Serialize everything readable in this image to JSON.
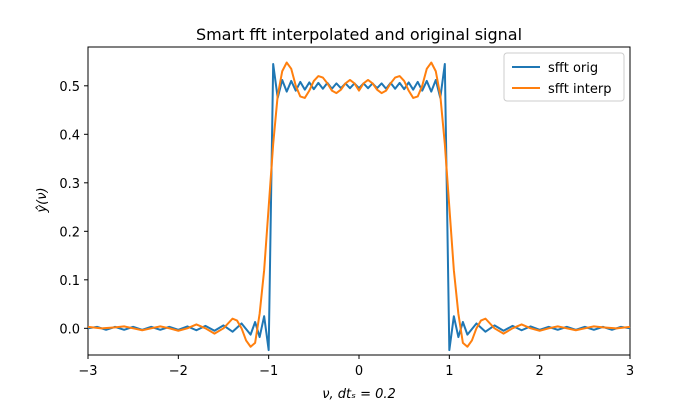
{
  "chart_data": {
    "type": "line",
    "title": "Smart fft interpolated and original signal",
    "xlabel": "ν, dtₛ = 0.2",
    "ylabel": "ŷ(ν)",
    "xlim": [
      -3,
      3
    ],
    "ylim": [
      -0.055,
      0.58
    ],
    "x_ticks": [
      -3,
      -2,
      -1,
      0,
      1,
      2,
      3
    ],
    "x_tick_labels": [
      "−3",
      "−2",
      "−1",
      "0",
      "1",
      "2",
      "3"
    ],
    "y_ticks": [
      0.0,
      0.1,
      0.2,
      0.3,
      0.4,
      0.5
    ],
    "y_tick_labels": [
      "0.0",
      "0.1",
      "0.2",
      "0.3",
      "0.4",
      "0.5"
    ],
    "grid": false,
    "legend_position": "top-right",
    "series": [
      {
        "name": "sfft orig",
        "color": "#1f77b4",
        "points": [
          [
            -3.0,
            0.0
          ],
          [
            -2.9,
            0.003
          ],
          [
            -2.8,
            -0.003
          ],
          [
            -2.7,
            0.003
          ],
          [
            -2.6,
            -0.003
          ],
          [
            -2.5,
            0.003
          ],
          [
            -2.4,
            -0.003
          ],
          [
            -2.3,
            0.003
          ],
          [
            -2.2,
            -0.003
          ],
          [
            -2.1,
            0.003
          ],
          [
            -2.0,
            -0.003
          ],
          [
            -1.9,
            0.004
          ],
          [
            -1.8,
            -0.004
          ],
          [
            -1.7,
            0.005
          ],
          [
            -1.6,
            -0.005
          ],
          [
            -1.5,
            0.006
          ],
          [
            -1.4,
            -0.007
          ],
          [
            -1.3,
            0.01
          ],
          [
            -1.2,
            -0.013
          ],
          [
            -1.15,
            0.013
          ],
          [
            -1.1,
            -0.018
          ],
          [
            -1.05,
            0.025
          ],
          [
            -1.0,
            -0.045
          ],
          [
            -0.95,
            0.545
          ],
          [
            -0.9,
            0.475
          ],
          [
            -0.85,
            0.512
          ],
          [
            -0.8,
            0.488
          ],
          [
            -0.75,
            0.51
          ],
          [
            -0.7,
            0.49
          ],
          [
            -0.65,
            0.508
          ],
          [
            -0.6,
            0.492
          ],
          [
            -0.55,
            0.507
          ],
          [
            -0.5,
            0.493
          ],
          [
            -0.45,
            0.506
          ],
          [
            -0.4,
            0.494
          ],
          [
            -0.35,
            0.506
          ],
          [
            -0.3,
            0.494
          ],
          [
            -0.25,
            0.505
          ],
          [
            -0.2,
            0.495
          ],
          [
            -0.15,
            0.505
          ],
          [
            -0.1,
            0.495
          ],
          [
            -0.05,
            0.505
          ],
          [
            0.0,
            0.495
          ],
          [
            0.05,
            0.505
          ],
          [
            0.1,
            0.495
          ],
          [
            0.15,
            0.505
          ],
          [
            0.2,
            0.495
          ],
          [
            0.25,
            0.505
          ],
          [
            0.3,
            0.494
          ],
          [
            0.35,
            0.506
          ],
          [
            0.4,
            0.494
          ],
          [
            0.45,
            0.506
          ],
          [
            0.5,
            0.493
          ],
          [
            0.55,
            0.507
          ],
          [
            0.6,
            0.492
          ],
          [
            0.65,
            0.508
          ],
          [
            0.7,
            0.49
          ],
          [
            0.75,
            0.51
          ],
          [
            0.8,
            0.488
          ],
          [
            0.85,
            0.512
          ],
          [
            0.9,
            0.475
          ],
          [
            0.95,
            0.545
          ],
          [
            1.0,
            -0.045
          ],
          [
            1.05,
            0.025
          ],
          [
            1.1,
            -0.018
          ],
          [
            1.15,
            0.013
          ],
          [
            1.2,
            -0.013
          ],
          [
            1.3,
            0.01
          ],
          [
            1.4,
            -0.007
          ],
          [
            1.5,
            0.006
          ],
          [
            1.6,
            -0.005
          ],
          [
            1.7,
            0.005
          ],
          [
            1.8,
            -0.004
          ],
          [
            1.9,
            0.004
          ],
          [
            2.0,
            -0.003
          ],
          [
            2.1,
            0.003
          ],
          [
            2.2,
            -0.003
          ],
          [
            2.3,
            0.003
          ],
          [
            2.4,
            -0.003
          ],
          [
            2.5,
            0.003
          ],
          [
            2.6,
            -0.003
          ],
          [
            2.7,
            0.003
          ],
          [
            2.8,
            -0.003
          ],
          [
            2.9,
            0.003
          ],
          [
            3.0,
            0.0
          ]
        ]
      },
      {
        "name": "sfft interp",
        "color": "#ff7f0e",
        "points": [
          [
            -3.0,
            0.003
          ],
          [
            -2.85,
            0.0
          ],
          [
            -2.7,
            0.002
          ],
          [
            -2.6,
            0.004
          ],
          [
            -2.5,
            0.0
          ],
          [
            -2.4,
            -0.004
          ],
          [
            -2.3,
            0.0
          ],
          [
            -2.2,
            0.004
          ],
          [
            -2.1,
            0.0
          ],
          [
            -2.0,
            -0.005
          ],
          [
            -1.9,
            0.0
          ],
          [
            -1.8,
            0.008
          ],
          [
            -1.7,
            0.0
          ],
          [
            -1.6,
            -0.011
          ],
          [
            -1.5,
            0.0
          ],
          [
            -1.4,
            0.02
          ],
          [
            -1.35,
            0.016
          ],
          [
            -1.3,
            0.0
          ],
          [
            -1.25,
            -0.025
          ],
          [
            -1.2,
            -0.038
          ],
          [
            -1.15,
            -0.03
          ],
          [
            -1.1,
            0.03
          ],
          [
            -1.05,
            0.12
          ],
          [
            -1.0,
            0.25
          ],
          [
            -0.95,
            0.38
          ],
          [
            -0.9,
            0.48
          ],
          [
            -0.85,
            0.53
          ],
          [
            -0.8,
            0.548
          ],
          [
            -0.75,
            0.535
          ],
          [
            -0.7,
            0.5
          ],
          [
            -0.65,
            0.478
          ],
          [
            -0.6,
            0.475
          ],
          [
            -0.55,
            0.49
          ],
          [
            -0.5,
            0.51
          ],
          [
            -0.45,
            0.52
          ],
          [
            -0.4,
            0.517
          ],
          [
            -0.35,
            0.505
          ],
          [
            -0.3,
            0.49
          ],
          [
            -0.25,
            0.485
          ],
          [
            -0.2,
            0.492
          ],
          [
            -0.15,
            0.505
          ],
          [
            -0.1,
            0.512
          ],
          [
            -0.05,
            0.505
          ],
          [
            0.0,
            0.49
          ],
          [
            0.05,
            0.505
          ],
          [
            0.1,
            0.512
          ],
          [
            0.15,
            0.505
          ],
          [
            0.2,
            0.492
          ],
          [
            0.25,
            0.485
          ],
          [
            0.3,
            0.49
          ],
          [
            0.35,
            0.505
          ],
          [
            0.4,
            0.517
          ],
          [
            0.45,
            0.52
          ],
          [
            0.5,
            0.51
          ],
          [
            0.55,
            0.49
          ],
          [
            0.6,
            0.475
          ],
          [
            0.65,
            0.478
          ],
          [
            0.7,
            0.5
          ],
          [
            0.75,
            0.535
          ],
          [
            0.8,
            0.548
          ],
          [
            0.85,
            0.53
          ],
          [
            0.9,
            0.48
          ],
          [
            0.95,
            0.38
          ],
          [
            1.0,
            0.25
          ],
          [
            1.05,
            0.12
          ],
          [
            1.1,
            0.03
          ],
          [
            1.15,
            -0.03
          ],
          [
            1.2,
            -0.038
          ],
          [
            1.25,
            -0.025
          ],
          [
            1.3,
            0.0
          ],
          [
            1.35,
            0.016
          ],
          [
            1.4,
            0.02
          ],
          [
            1.5,
            0.0
          ],
          [
            1.6,
            -0.011
          ],
          [
            1.7,
            0.0
          ],
          [
            1.8,
            0.008
          ],
          [
            1.9,
            0.0
          ],
          [
            2.0,
            -0.005
          ],
          [
            2.1,
            0.0
          ],
          [
            2.2,
            0.004
          ],
          [
            2.3,
            0.0
          ],
          [
            2.4,
            -0.004
          ],
          [
            2.5,
            0.0
          ],
          [
            2.6,
            0.004
          ],
          [
            2.7,
            0.002
          ],
          [
            2.85,
            0.0
          ],
          [
            3.0,
            0.003
          ]
        ]
      }
    ]
  }
}
